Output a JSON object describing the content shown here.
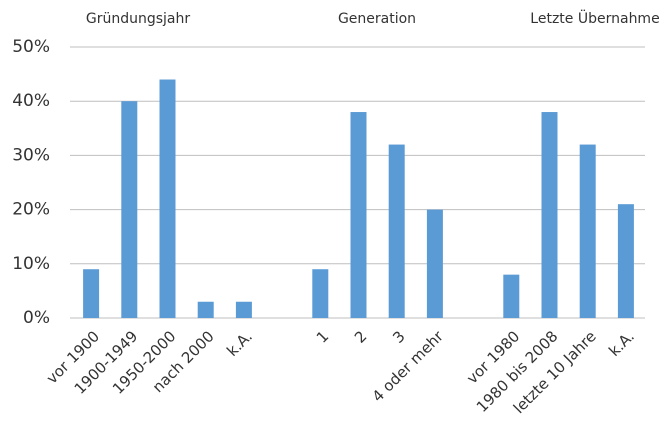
{
  "chart_data": {
    "type": "bar",
    "annotations": [
      "Gründungsjahr",
      "Generation",
      "Letzte Übernahme"
    ],
    "categories": [
      "vor 1900",
      "1900-1949",
      "1950-2000",
      "nach 2000",
      "k.A.",
      null,
      "1",
      "2",
      "3",
      "4 oder mehr",
      null,
      "vor 1980",
      "1980 bis 2008",
      "letzte 10 Jahre",
      "k.A."
    ],
    "values": [
      9,
      40,
      44,
      3,
      3,
      null,
      9,
      38,
      32,
      20,
      null,
      8,
      38,
      32,
      21
    ],
    "color": "#5b9bd5",
    "ylim": [
      0,
      50
    ],
    "yticks": [
      {
        "value": 0,
        "label": "0%"
      },
      {
        "value": 10,
        "label": "10%"
      },
      {
        "value": 20,
        "label": "20%"
      },
      {
        "value": 30,
        "label": "30%"
      },
      {
        "value": 40,
        "label": "40%"
      },
      {
        "value": 50,
        "label": "50%"
      }
    ],
    "grid": true
  }
}
